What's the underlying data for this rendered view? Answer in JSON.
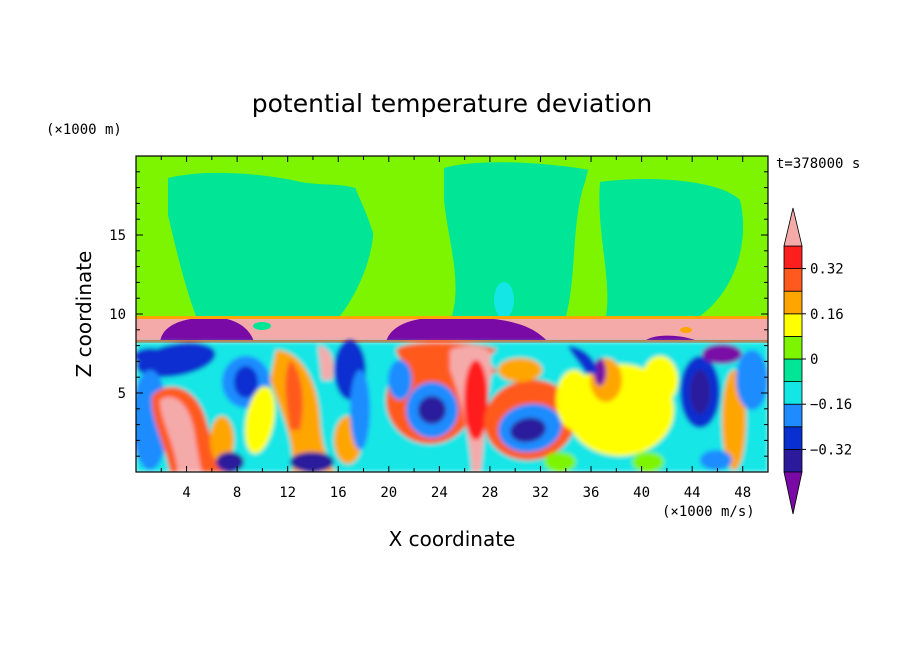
{
  "chart_data": {
    "type": "heatmap",
    "title": "potential temperature deviation",
    "xlabel": "X coordinate",
    "ylabel": "Z coordinate",
    "x_unit": "(×1000 m/s)",
    "y_unit": "(×1000 m)",
    "time_label": "t=378000 s",
    "xlim": [
      0,
      50
    ],
    "ylim": [
      0,
      20
    ],
    "x_ticks": [
      4,
      8,
      12,
      16,
      20,
      24,
      28,
      32,
      36,
      40,
      44,
      48
    ],
    "y_ticks": [
      5,
      10,
      15
    ],
    "colorbar": {
      "levels": [
        -0.4,
        -0.32,
        -0.24,
        -0.16,
        -0.08,
        0,
        0.08,
        0.16,
        0.24,
        0.32,
        0.4
      ],
      "labeled_levels": [
        0.32,
        0.16,
        0,
        -0.16,
        -0.32
      ],
      "tick_labels": [
        "0.32",
        "0.16",
        "0",
        "−0.16",
        "−0.32"
      ],
      "colors": [
        "#7a0aa5",
        "#2b1a9c",
        "#0a2fd0",
        "#1e8cff",
        "#14e6e6",
        "#00e696",
        "#7df500",
        "#ffff00",
        "#ffa500",
        "#ff5a1e",
        "#ff1e1e",
        "#f5aaaa"
      ],
      "extend": "both"
    }
  }
}
